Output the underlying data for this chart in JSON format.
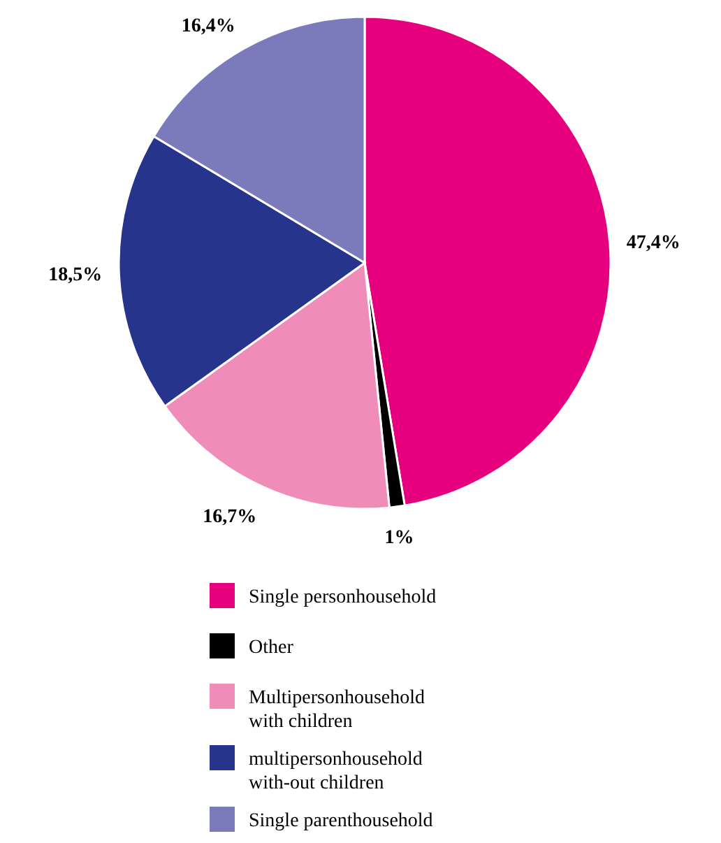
{
  "chart_data": {
    "type": "pie",
    "categories": [
      "Single personhousehold",
      "Other",
      "Multipersonhousehold with children",
      "multipersonhousehold with-out children",
      "Single parenthousehold"
    ],
    "values": [
      47.4,
      1,
      16.7,
      18.5,
      16.4
    ],
    "colors": [
      "#e6007e",
      "#000000",
      "#f08cba",
      "#27348b",
      "#7b7bbb"
    ],
    "value_labels": [
      "47,4%",
      "1%",
      "16,7%",
      "18,5%",
      "16,4%"
    ],
    "legend": "bottom"
  }
}
